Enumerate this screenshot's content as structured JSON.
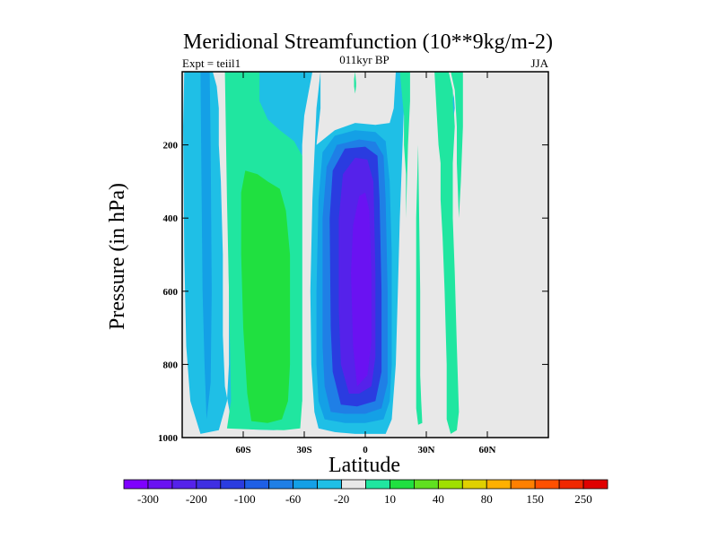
{
  "chart_data": {
    "type": "heatmap",
    "title": "Meridional Streamfunction (10**9kg/m-2)",
    "subtitle_left": "Expt = teiil1",
    "subtitle_center": "011kyr BP",
    "subtitle_right": "JJA",
    "xlabel": "Latitude",
    "ylabel": "Pressure (in hPa)",
    "xlim": [
      -90,
      90
    ],
    "ylim": [
      1000,
      0
    ],
    "x_ticks": [
      {
        "value": -60,
        "label": "60S"
      },
      {
        "value": -30,
        "label": "30S"
      },
      {
        "value": 0,
        "label": "0"
      },
      {
        "value": 30,
        "label": "30N"
      },
      {
        "value": 60,
        "label": "60N"
      }
    ],
    "y_ticks": [
      {
        "value": 200,
        "label": "200"
      },
      {
        "value": 400,
        "label": "400"
      },
      {
        "value": 600,
        "label": "600"
      },
      {
        "value": 800,
        "label": "800"
      },
      {
        "value": 1000,
        "label": "1000"
      }
    ],
    "background_color": "#e8e8e8",
    "colorbar": {
      "colors": [
        "#7f00ff",
        "#6a12f2",
        "#5522ea",
        "#3f2fe2",
        "#2a3ce0",
        "#1e5fe6",
        "#1f7fe6",
        "#14a0e6",
        "#1fbfe6",
        "#e8e8e8",
        "#20e6a0",
        "#20e040",
        "#60e020",
        "#a0e000",
        "#e0d000",
        "#ffb000",
        "#ff8000",
        "#ff5000",
        "#f02800",
        "#e00000"
      ],
      "tick_labels": [
        "-300",
        "-200",
        "-100",
        "-60",
        "-20",
        "10",
        "40",
        "80",
        "150",
        "250"
      ]
    },
    "contours": [
      {
        "level": -20,
        "color": "#1fbfe6",
        "points": [
          [
            -81,
            990
          ],
          [
            -86,
            900
          ],
          [
            -88,
            750
          ],
          [
            -89,
            500
          ],
          [
            -89.5,
            150
          ],
          [
            -89,
            0
          ],
          [
            -75,
            0
          ],
          [
            -73,
            40
          ],
          [
            -72,
            100
          ],
          [
            -72,
            200
          ],
          [
            -71,
            300
          ],
          [
            -70,
            500
          ],
          [
            -70,
            720
          ],
          [
            -69,
            860
          ],
          [
            -66,
            950
          ],
          [
            -60,
            975
          ],
          [
            -55,
            978
          ],
          [
            -45,
            980
          ],
          [
            -33,
            975
          ],
          [
            -31,
            900
          ],
          [
            -31,
            200
          ],
          [
            -30,
            120
          ],
          [
            -28,
            60
          ],
          [
            -26,
            0
          ],
          [
            -22,
            0
          ],
          [
            -22,
            100
          ],
          [
            -24,
            200
          ],
          [
            -26,
            350
          ],
          [
            -27,
            600
          ],
          [
            -26.5,
            800
          ],
          [
            -25,
            930
          ],
          [
            -23,
            975
          ],
          [
            -15,
            985
          ],
          [
            -5,
            990
          ],
          [
            10,
            990
          ],
          [
            13,
            950
          ],
          [
            15,
            800
          ],
          [
            16,
            600
          ],
          [
            17,
            400
          ],
          [
            18,
            250
          ],
          [
            19,
            100
          ],
          [
            20,
            0
          ],
          [
            15,
            0
          ],
          [
            14,
            100
          ],
          [
            12,
            140
          ],
          [
            5,
            145
          ],
          [
            -5,
            140
          ],
          [
            -15,
            160
          ],
          [
            -24,
            200
          ],
          [
            -26,
            350
          ],
          [
            -24,
            100
          ],
          [
            -22,
            0
          ],
          [
            -68,
            0
          ],
          [
            -68,
            200
          ],
          [
            -67,
            600
          ],
          [
            -67,
            800
          ],
          [
            -68,
            900
          ],
          [
            -72,
            980
          ],
          [
            -81,
            990
          ]
        ]
      },
      {
        "level": -60,
        "color": "#14a0e6",
        "points": [
          [
            -78,
            950
          ],
          [
            -79,
            800
          ],
          [
            -80,
            600
          ],
          [
            -80.5,
            300
          ],
          [
            -81,
            0
          ],
          [
            -76.5,
            0
          ],
          [
            -76,
            200
          ],
          [
            -75.5,
            600
          ],
          [
            -76,
            850
          ],
          [
            -78,
            950
          ]
        ]
      },
      {
        "level": -60,
        "color": "#14a0e6",
        "points": [
          [
            -20,
            950
          ],
          [
            -23,
            900
          ],
          [
            -24,
            800
          ],
          [
            -24,
            600
          ],
          [
            -23,
            350
          ],
          [
            -21,
            220
          ],
          [
            -15,
            175
          ],
          [
            -5,
            160
          ],
          [
            5,
            165
          ],
          [
            10,
            190
          ],
          [
            12,
            300
          ],
          [
            13,
            500
          ],
          [
            13,
            800
          ],
          [
            12,
            900
          ],
          [
            9,
            950
          ],
          [
            0,
            960
          ],
          [
            -10,
            960
          ],
          [
            -20,
            950
          ]
        ]
      },
      {
        "level": -100,
        "color": "#1f7fe6",
        "points": [
          [
            -17,
            930
          ],
          [
            -20,
            860
          ],
          [
            -21,
            750
          ],
          [
            -21,
            400
          ],
          [
            -19,
            260
          ],
          [
            -14,
            200
          ],
          [
            -3,
            185
          ],
          [
            5,
            192
          ],
          [
            9,
            230
          ],
          [
            10,
            350
          ],
          [
            11,
            600
          ],
          [
            11,
            850
          ],
          [
            8,
            920
          ],
          [
            0,
            935
          ],
          [
            -10,
            935
          ],
          [
            -17,
            930
          ]
        ]
      },
      {
        "level": -200,
        "color": "#2a3ce0",
        "points": [
          [
            -12,
            910
          ],
          [
            -16,
            820
          ],
          [
            -17,
            700
          ],
          [
            -17.5,
            400
          ],
          [
            -16,
            270
          ],
          [
            -10,
            210
          ],
          [
            0,
            205
          ],
          [
            6,
            230
          ],
          [
            7,
            350
          ],
          [
            8,
            600
          ],
          [
            8,
            820
          ],
          [
            5,
            900
          ],
          [
            -4,
            915
          ],
          [
            -12,
            910
          ]
        ]
      },
      {
        "level": -300,
        "color": "#5522ea",
        "points": [
          [
            -8,
            880
          ],
          [
            -12,
            800
          ],
          [
            -13,
            650
          ],
          [
            -13,
            400
          ],
          [
            -11,
            280
          ],
          [
            -5,
            235
          ],
          [
            1,
            240
          ],
          [
            4,
            300
          ],
          [
            5,
            550
          ],
          [
            5,
            780
          ],
          [
            3,
            860
          ],
          [
            -3,
            880
          ],
          [
            -8,
            880
          ]
        ]
      },
      {
        "level": -300,
        "color": "#6a12f2",
        "points": [
          [
            -4,
            860
          ],
          [
            -6,
            750
          ],
          [
            -7,
            550
          ],
          [
            -6,
            420
          ],
          [
            -3,
            340
          ],
          [
            0,
            330
          ],
          [
            2,
            380
          ],
          [
            3,
            550
          ],
          [
            3,
            740
          ],
          [
            1,
            830
          ],
          [
            -4,
            860
          ]
        ]
      },
      {
        "level": 10,
        "color": "#20e6a0",
        "points": [
          [
            -68,
            975
          ],
          [
            -66,
            900
          ],
          [
            -67,
            600
          ],
          [
            -68,
            350
          ],
          [
            -69,
            0
          ],
          [
            -52,
            0
          ],
          [
            -52,
            80
          ],
          [
            -48,
            130
          ],
          [
            -42,
            160
          ],
          [
            -35,
            190
          ],
          [
            -31,
            230
          ],
          [
            -31,
            900
          ],
          [
            -32,
            975
          ],
          [
            -40,
            980
          ],
          [
            -55,
            978
          ],
          [
            -68,
            975
          ]
        ]
      },
      {
        "level": 40,
        "color": "#20e040",
        "points": [
          [
            -56,
            955
          ],
          [
            -58,
            880
          ],
          [
            -60,
            700
          ],
          [
            -61,
            500
          ],
          [
            -61,
            330
          ],
          [
            -59,
            270
          ],
          [
            -53,
            280
          ],
          [
            -48,
            300
          ],
          [
            -42,
            320
          ],
          [
            -39,
            380
          ],
          [
            -37,
            500
          ],
          [
            -37,
            800
          ],
          [
            -38,
            900
          ],
          [
            -41,
            950
          ],
          [
            -48,
            960
          ],
          [
            -56,
            955
          ]
        ]
      },
      {
        "level": 10,
        "color": "#20e6a0",
        "points": [
          [
            -5,
            0
          ],
          [
            -4.5,
            30
          ],
          [
            -4.5,
            40
          ],
          [
            -5,
            60
          ],
          [
            -5.5,
            40
          ],
          [
            -5.5,
            20
          ],
          [
            -5,
            0
          ]
        ]
      },
      {
        "level": 10,
        "color": "#20e6a0",
        "points": [
          [
            17,
            0
          ],
          [
            18,
            60
          ],
          [
            19,
            120
          ],
          [
            19,
            200
          ],
          [
            20,
            280
          ],
          [
            20,
            400
          ],
          [
            21,
            200
          ],
          [
            22,
            80
          ],
          [
            22,
            0
          ],
          [
            17,
            0
          ]
        ]
      },
      {
        "level": 10,
        "color": "#20e6a0",
        "points": [
          [
            25,
            830
          ],
          [
            25,
            920
          ],
          [
            26,
            965
          ],
          [
            28,
            960
          ],
          [
            27.5,
            900
          ],
          [
            27,
            830
          ],
          [
            27,
            600
          ],
          [
            26,
            200
          ],
          [
            25,
            400
          ],
          [
            25,
            700
          ],
          [
            25,
            830
          ]
        ]
      },
      {
        "level": 10,
        "color": "#20e6a0",
        "points": [
          [
            34,
            0
          ],
          [
            35,
            100
          ],
          [
            36,
            200
          ],
          [
            37,
            250
          ],
          [
            37,
            350
          ],
          [
            38,
            450
          ],
          [
            39,
            600
          ],
          [
            40,
            800
          ],
          [
            40,
            950
          ],
          [
            42,
            990
          ],
          [
            45,
            980
          ],
          [
            46,
            930
          ],
          [
            45,
            750
          ],
          [
            44,
            550
          ],
          [
            43,
            400
          ],
          [
            43,
            250
          ],
          [
            44,
            150
          ],
          [
            43,
            50
          ],
          [
            41,
            0
          ],
          [
            34,
            0
          ]
        ]
      },
      {
        "level": 10,
        "color": "#20e6a0",
        "points": [
          [
            42,
            0
          ],
          [
            44,
            50
          ],
          [
            45,
            150
          ],
          [
            45,
            250
          ],
          [
            46,
            400
          ],
          [
            47,
            300
          ],
          [
            48,
            150
          ],
          [
            48,
            0
          ],
          [
            42,
            0
          ]
        ]
      },
      {
        "level": -20,
        "color": "#1fbfe6",
        "points": [
          [
            43,
            80
          ],
          [
            43.5,
            120
          ],
          [
            44,
            100
          ],
          [
            43.5,
            60
          ],
          [
            43,
            80
          ]
        ]
      }
    ]
  }
}
